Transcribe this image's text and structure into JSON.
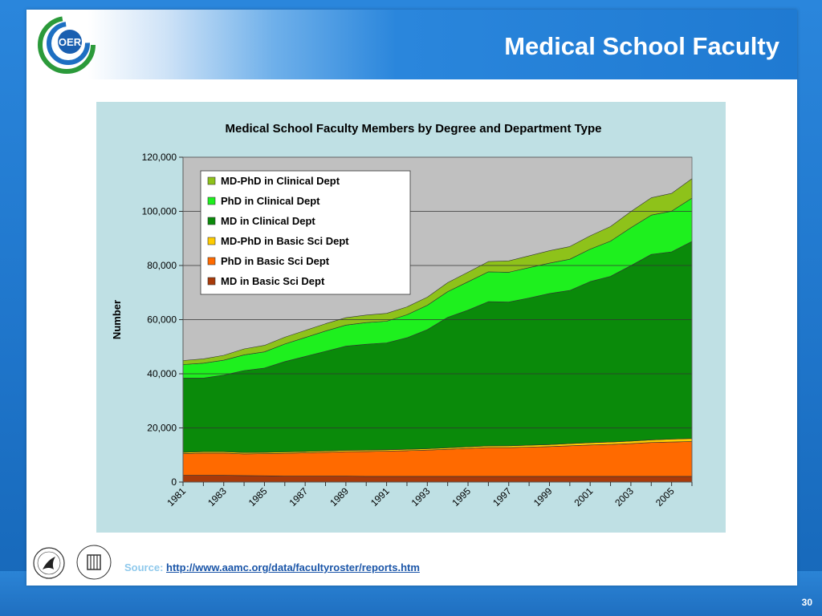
{
  "slide": {
    "title": "Medical School Faculty",
    "number": "30",
    "logo_text": "OER",
    "source_label": "Source:",
    "source_link": "http://www.aamc.org/data/facultyroster/reports.htm",
    "footer_logos": [
      "hhs-seal",
      "nih-logo"
    ]
  },
  "colors": {
    "accent_blue": "#1f7ad2",
    "plot_bg": "#c0c0c0",
    "chart_panel_bg": "#bfe0e4"
  },
  "chart_data": {
    "type": "area",
    "stacked": true,
    "title": "Medical School Faculty Members by Degree and Department Type",
    "ylabel": "Number",
    "xlabel": "",
    "ylim": [
      0,
      120000
    ],
    "yticks": [
      0,
      20000,
      40000,
      60000,
      80000,
      100000,
      120000
    ],
    "ytick_labels": [
      "0",
      "20,000",
      "40,000",
      "60,000",
      "80,000",
      "100,000",
      "120,000"
    ],
    "x": [
      1981,
      1982,
      1983,
      1984,
      1985,
      1986,
      1987,
      1988,
      1989,
      1990,
      1991,
      1992,
      1993,
      1994,
      1995,
      1996,
      1997,
      1998,
      1999,
      2000,
      2001,
      2002,
      2003,
      2004,
      2005,
      2006
    ],
    "xtick_labels": [
      "1981",
      "1983",
      "1985",
      "1987",
      "1989",
      "1991",
      "1993",
      "1995",
      "1997",
      "1999",
      "2001",
      "2003",
      "2005"
    ],
    "grid": "horizontal",
    "legend_position": "top-left",
    "series": [
      {
        "name": "MD in Basic Sci Dept",
        "color": "#a83a0a",
        "values": [
          2500,
          2500,
          2500,
          2400,
          2300,
          2200,
          2200,
          2200,
          2200,
          2100,
          2100,
          2100,
          2100,
          2100,
          2100,
          2100,
          2100,
          2100,
          2100,
          2100,
          2100,
          2100,
          2100,
          2100,
          2100,
          2100
        ]
      },
      {
        "name": "PhD in Basic Sci Dept",
        "color": "#ff6a00",
        "values": [
          8000,
          8200,
          8200,
          8000,
          8200,
          8400,
          8600,
          8800,
          9000,
          9200,
          9300,
          9500,
          9700,
          10000,
          10300,
          10600,
          10600,
          10800,
          11000,
          11300,
          11600,
          11800,
          12100,
          12500,
          12700,
          12900
        ]
      },
      {
        "name": "MD-PhD in Basic Sci Dept",
        "color": "#ffcc00",
        "values": [
          500,
          500,
          500,
          500,
          500,
          500,
          500,
          500,
          500,
          500,
          500,
          500,
          500,
          550,
          600,
          650,
          700,
          700,
          750,
          800,
          850,
          900,
          950,
          1000,
          1050,
          1100
        ]
      },
      {
        "name": "MD in Clinical Dept",
        "color": "#0a8a0a",
        "values": [
          27400,
          27200,
          28300,
          30300,
          31100,
          33400,
          35100,
          36800,
          38500,
          39100,
          39500,
          41200,
          44000,
          48200,
          50500,
          53300,
          53100,
          54400,
          55800,
          56600,
          59500,
          61200,
          64800,
          68500,
          69200,
          72800
        ]
      },
      {
        "name": "PhD in Clinical Dept",
        "color": "#1ef01e",
        "values": [
          5000,
          5500,
          5500,
          5800,
          6000,
          6500,
          7000,
          7500,
          7800,
          8000,
          8000,
          8500,
          9000,
          9500,
          10500,
          11000,
          11000,
          11200,
          11200,
          11500,
          12000,
          13000,
          14000,
          14500,
          15000,
          16000
        ]
      },
      {
        "name": "MD-PhD in Clinical Dept",
        "color": "#8ec21a",
        "values": [
          1500,
          1600,
          1800,
          2200,
          2400,
          2500,
          2600,
          2700,
          2700,
          2800,
          2900,
          2900,
          3000,
          3300,
          3500,
          3800,
          4200,
          4400,
          4600,
          4700,
          4900,
          5400,
          6000,
          6400,
          6600,
          7200
        ]
      }
    ]
  }
}
